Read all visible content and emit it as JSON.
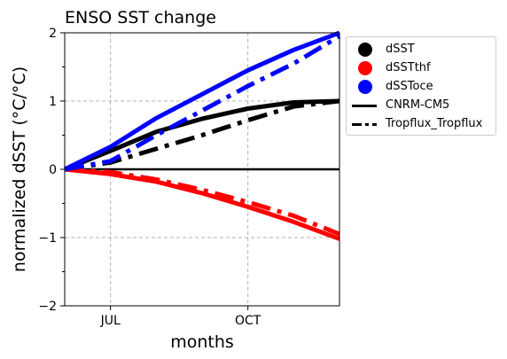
{
  "chart_data": {
    "type": "line",
    "title": "ENSO SST change",
    "xlabel": "months",
    "ylabel": "normalized dSST ($^\\circ$C/$^\\circ$C)",
    "ylabel_display": "normalized dSST (°C/°C)",
    "x_ticks": [
      "JUL",
      "OCT"
    ],
    "x": [
      6.0,
      7.0,
      8.0,
      9.0,
      10.0,
      11.0,
      12.0
    ],
    "xlim": [
      6.0,
      12.0
    ],
    "x_tick_values": [
      7.0,
      10.0
    ],
    "ylim": [
      -2,
      2
    ],
    "y_ticks": [
      -2,
      -1,
      0,
      1,
      2
    ],
    "grid": true,
    "zero_line": true,
    "legend_position": "outside-right",
    "legend": [
      {
        "label": "dSST",
        "kind": "marker",
        "color": "#000000"
      },
      {
        "label": "dSSTthf",
        "kind": "marker",
        "color": "#ff0000"
      },
      {
        "label": "dSSToce",
        "kind": "marker",
        "color": "#0000ff"
      },
      {
        "label": "CNRM-CM5",
        "kind": "line",
        "style": "solid",
        "color": "#000000"
      },
      {
        "label": "Tropflux_Tropflux",
        "kind": "line",
        "style": "dashdot",
        "color": "#000000"
      }
    ],
    "series": [
      {
        "variable": "dSST",
        "source": "CNRM-CM5",
        "color": "#000000",
        "style": "solid",
        "values": [
          0.0,
          0.27,
          0.55,
          0.74,
          0.89,
          0.98,
          1.0
        ]
      },
      {
        "variable": "dSSTthf",
        "source": "CNRM-CM5",
        "color": "#ff0000",
        "style": "solid",
        "values": [
          0.0,
          -0.07,
          -0.18,
          -0.35,
          -0.55,
          -0.77,
          -1.02
        ]
      },
      {
        "variable": "dSSToce",
        "source": "CNRM-CM5",
        "color": "#0000ff",
        "style": "solid",
        "values": [
          0.0,
          0.33,
          0.75,
          1.1,
          1.45,
          1.75,
          2.0
        ]
      },
      {
        "variable": "dSST",
        "source": "Tropflux_Tropflux",
        "color": "#000000",
        "style": "dashdot",
        "values": [
          0.0,
          0.1,
          0.3,
          0.5,
          0.72,
          0.92,
          1.0
        ]
      },
      {
        "variable": "dSSTthf",
        "source": "Tropflux_Tropflux",
        "color": "#ff0000",
        "style": "dashdot",
        "values": [
          0.0,
          -0.04,
          -0.15,
          -0.3,
          -0.48,
          -0.68,
          -0.95
        ]
      },
      {
        "variable": "dSSToce",
        "source": "Tropflux_Tropflux",
        "color": "#0000ff",
        "style": "dashdot",
        "values": [
          0.0,
          0.12,
          0.5,
          0.86,
          1.22,
          1.55,
          1.95
        ]
      }
    ]
  }
}
